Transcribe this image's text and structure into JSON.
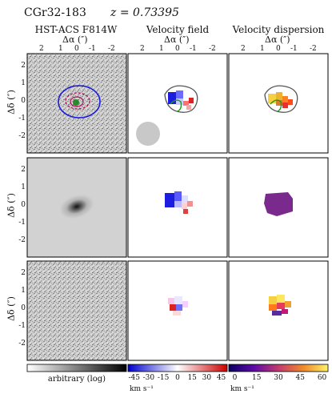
{
  "figure": {
    "object_name": "CGr32-183",
    "redshift_label": "z = 0.73395",
    "columns": [
      {
        "title": "HST-ACS F814W"
      },
      {
        "title": "Velocity field"
      },
      {
        "title": "Velocity dispersion"
      }
    ],
    "x_axis_label": "Δα (″)",
    "y_axis_label": "Δδ (″)",
    "x_ticks": [
      "2",
      "1",
      "0",
      "-1",
      "-2"
    ],
    "y_ticks": [
      "2",
      "1",
      "0",
      "-1",
      "-2"
    ],
    "colorbars": [
      {
        "label": "arbitrary (log)",
        "ticks": [],
        "unit": ""
      },
      {
        "label": "",
        "ticks": [
          "-45",
          "-30",
          "-15",
          "0",
          "15",
          "30",
          "45"
        ],
        "unit": "km s⁻¹"
      },
      {
        "label": "",
        "ticks": [
          "0",
          "15",
          "30",
          "45",
          "60"
        ],
        "unit": "km s⁻¹"
      }
    ]
  }
}
